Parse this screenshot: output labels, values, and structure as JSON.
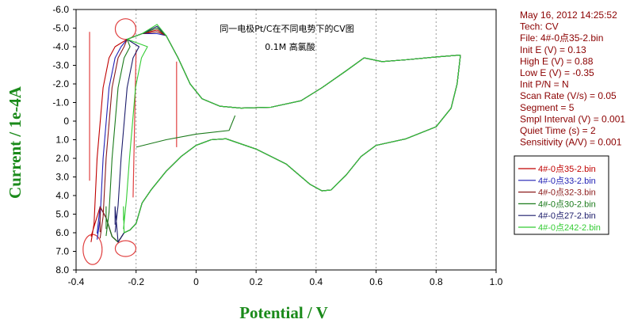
{
  "chart_data": {
    "type": "line",
    "title": "同一电极Pt/C在不同电势下的CV图",
    "subtitle": "0.1M 高氯酸",
    "xlabel": "Potential / V",
    "ylabel": "Current / 1e-4A",
    "xlim": [
      -0.4,
      1.0
    ],
    "ylim": [
      -6.0,
      8.0
    ],
    "y_axis_inverted": true,
    "x_ticks": [
      "-0.4",
      "-0.2",
      "0",
      "0.2",
      "0.4",
      "0.6",
      "0.8",
      "1.0"
    ],
    "y_ticks": [
      "-6.0",
      "-5.0",
      "-4.0",
      "-3.0",
      "-2.0",
      "-1.0",
      "0",
      "1.0",
      "2.0",
      "3.0",
      "4.0",
      "5.0",
      "6.0",
      "7.0",
      "8.0"
    ],
    "grid": "vertical dashed",
    "legend_position": "right",
    "series": [
      {
        "name": "4#-0点35-2.bin",
        "color": "#c00000",
        "low_e": -0.35,
        "anodic_peak": -4.9
      },
      {
        "name": "4#-0点33-2.bin",
        "color": "#1f1fb4",
        "low_e": -0.33,
        "anodic_peak": -4.7
      },
      {
        "name": "4#-0点32-3.bin",
        "color": "#8b1a1a",
        "low_e": -0.32,
        "anodic_peak": -4.8
      },
      {
        "name": "4#-0点30-2.bin",
        "color": "#1a7a1a",
        "low_e": -0.3,
        "anodic_peak": -5.0
      },
      {
        "name": "4#-0点27-2.bin",
        "color": "#1c1c6b",
        "low_e": -0.27,
        "anodic_peak": -5.1
      },
      {
        "name": "4#-0点242-2.bin",
        "color": "#33cc33",
        "low_e": -0.242,
        "anodic_peak": -5.2
      }
    ],
    "info": [
      "May 16, 2012   14:25:52",
      "Tech: CV",
      "File: 4#-0点35-2.bin",
      "Init E (V) = 0.13",
      "High E (V) = 0.88",
      "Low E (V) = -0.35",
      "Init P/N = N",
      "Scan Rate (V/s) = 0.05",
      "Segment = 5",
      "Smpl Interval (V) = 0.001",
      "Quiet Time (s) = 2",
      "Sensitivity (A/V) = 0.001"
    ]
  }
}
